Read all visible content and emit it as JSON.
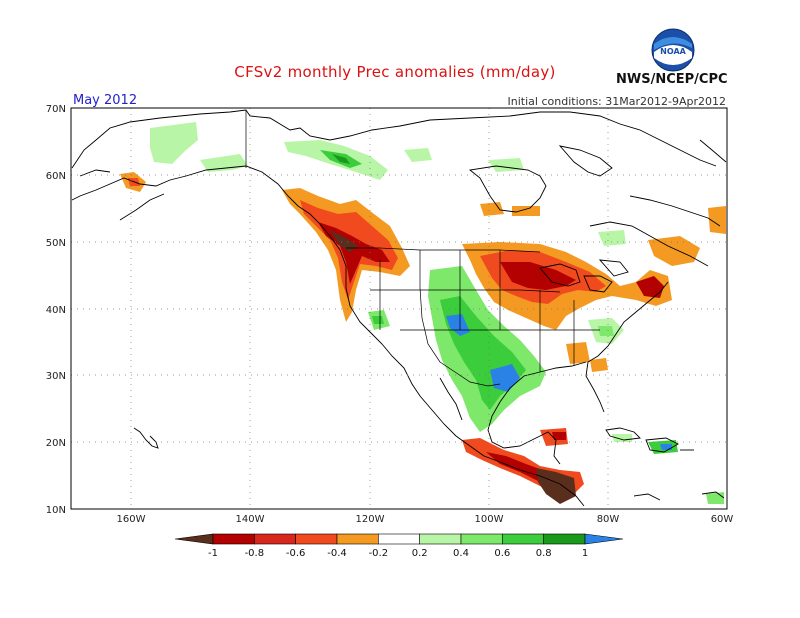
{
  "title": "CFSv2 monthly Prec anomalies (mm/day)",
  "period": "May 2012",
  "initial_conditions": "Initial conditions: 31Mar2012-9Apr2012",
  "agency": "NWS/NCEP/CPC",
  "logo_text": "NOAA",
  "lat_labels": [
    "70N",
    "60N",
    "50N",
    "40N",
    "30N",
    "20N",
    "10N"
  ],
  "lon_labels": [
    "160W",
    "140W",
    "120W",
    "100W",
    "80W",
    "60W"
  ],
  "colorbar": {
    "tick_labels": [
      "-1",
      "-0.8",
      "-0.6",
      "-0.4",
      "-0.2",
      "0.2",
      "0.4",
      "0.6",
      "0.8",
      "1"
    ],
    "colors": [
      "#5a2e1c",
      "#b30000",
      "#d8281e",
      "#f04a1e",
      "#f49a22",
      "#ffffff",
      "#b9f5a6",
      "#7de86a",
      "#3ccd3c",
      "#1a9a1a",
      "#2a82e6"
    ]
  },
  "colors": {
    "title": "#dd1111",
    "period": "#2222cc",
    "coast": "#000000"
  }
}
